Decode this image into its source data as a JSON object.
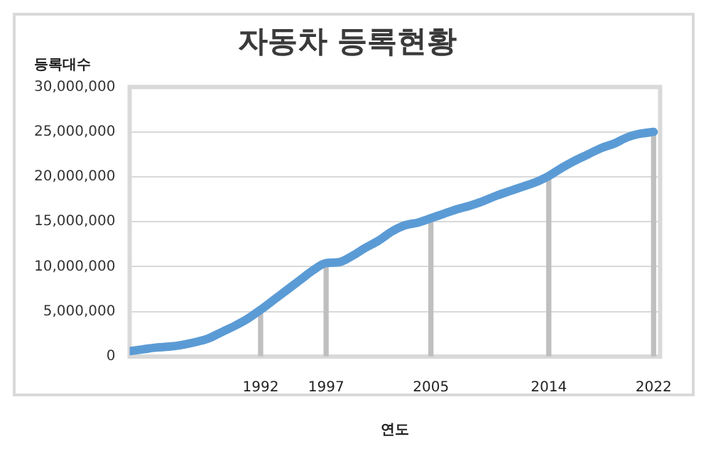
{
  "chart_data": {
    "type": "line",
    "title": "자동차 등록현황",
    "xlabel": "연도",
    "ylabel": "등록대수",
    "x": [
      1982,
      1983,
      1984,
      1985,
      1986,
      1987,
      1988,
      1989,
      1990,
      1991,
      1992,
      1993,
      1994,
      1995,
      1996,
      1997,
      1998,
      1999,
      2000,
      2001,
      2002,
      2003,
      2004,
      2005,
      2006,
      2007,
      2008,
      2009,
      2010,
      2011,
      2012,
      2013,
      2014,
      2015,
      2016,
      2017,
      2018,
      2019,
      2020,
      2021,
      2022
    ],
    "series": [
      {
        "color": "#5b9bd5",
        "values": [
          600000,
          800000,
          1000000,
          1100000,
          1300000,
          1600000,
          2000000,
          2700000,
          3400000,
          4200000,
          5200000,
          6300000,
          7400000,
          8500000,
          9600000,
          10400000,
          10500000,
          11200000,
          12100000,
          12900000,
          13900000,
          14600000,
          14900000,
          15400000,
          15900000,
          16400000,
          16800000,
          17300000,
          17900000,
          18400000,
          18900000,
          19400000,
          20100000,
          21000000,
          21800000,
          22500000,
          23200000,
          23700000,
          24400000,
          24800000,
          25000000
        ]
      },
      {
        "type": "bar",
        "color": "#bfbfbf",
        "x": [
          1992,
          1997,
          2005,
          2014,
          2022
        ],
        "values": [
          5200000,
          10400000,
          15400000,
          20100000,
          25000000
        ]
      }
    ],
    "xlim": [
      1982,
      2022.5
    ],
    "xticks": [
      1992,
      1997,
      2005,
      2014,
      2022
    ],
    "ylim": [
      0,
      30000000
    ],
    "yticks": [
      0,
      {
        "value": 5000000,
        "label": "5,000,000"
      },
      {
        "value": 10000000,
        "label": "10,000,000"
      },
      {
        "value": 15000000,
        "label": "15,000,000"
      },
      {
        "value": 20000000,
        "label": "20,000,000"
      },
      {
        "value": 25000000,
        "label": "25,000,000"
      },
      {
        "value": 30000000,
        "label": "30,000,000"
      }
    ],
    "grid": "y",
    "legend": false,
    "marker": "none",
    "line_style": "solid"
  }
}
